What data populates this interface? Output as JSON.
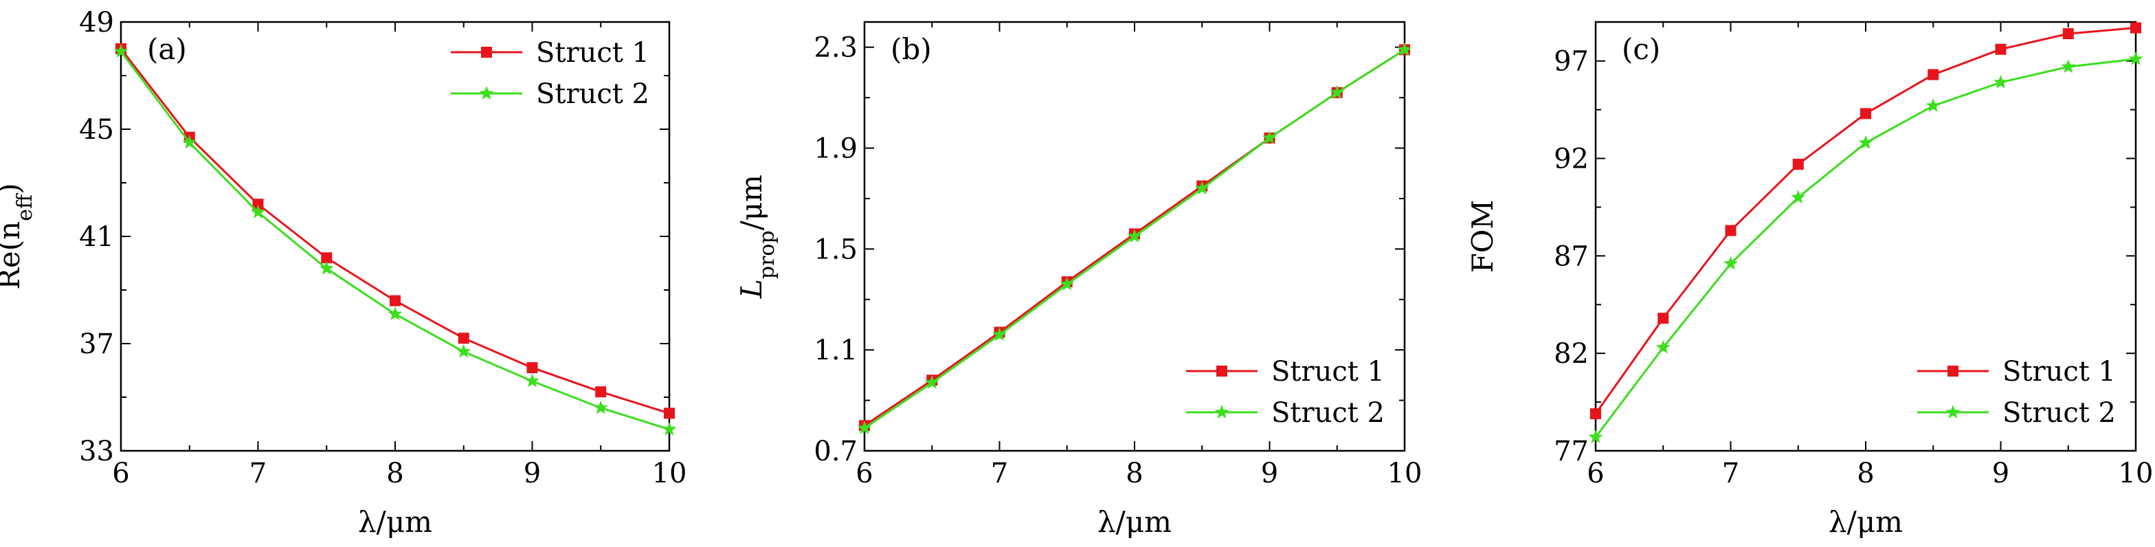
{
  "chart_data": [
    {
      "type": "line",
      "panel_label": "(a)",
      "x": [
        6,
        6.5,
        7,
        7.5,
        8,
        8.5,
        9,
        9.5,
        10
      ],
      "xlim": [
        6,
        10
      ],
      "xticks": [
        "6",
        "7",
        "8",
        "9",
        "10"
      ],
      "xlabel": "λ/μm",
      "ylabel": "Re(n",
      "ylabel_sub": "eff",
      "ylabel_close": ")",
      "ylim": [
        33,
        49
      ],
      "yticks": [
        "33",
        "37",
        "41",
        "45",
        "49"
      ],
      "legend_position": "top-right",
      "series": [
        {
          "name": "Struct 1",
          "color": "#e8141c",
          "marker": "square",
          "values": [
            48.0,
            44.7,
            42.2,
            40.2,
            38.6,
            37.2,
            36.1,
            35.2,
            34.4
          ]
        },
        {
          "name": "Struct 2",
          "color": "#3cde1e",
          "marker": "star",
          "values": [
            47.9,
            44.5,
            41.9,
            39.8,
            38.1,
            36.7,
            35.6,
            34.6,
            33.8
          ]
        }
      ]
    },
    {
      "type": "line",
      "panel_label": "(b)",
      "x": [
        6,
        6.5,
        7,
        7.5,
        8,
        8.5,
        9,
        9.5,
        10
      ],
      "xlim": [
        6,
        10
      ],
      "xticks": [
        "6",
        "7",
        "8",
        "9",
        "10"
      ],
      "xlabel": "λ/μm",
      "ylabel": "L",
      "ylabel_sub": "prop",
      "ylabel_close": "/μm",
      "ylim": [
        0.7,
        2.4
      ],
      "yticks": [
        "0.7",
        "1.1",
        "1.5",
        "1.9",
        "2.3"
      ],
      "ytick_values": [
        0.7,
        1.1,
        1.5,
        1.9,
        2.3
      ],
      "legend_position": "bottom-right",
      "series": [
        {
          "name": "Struct 1",
          "color": "#e8141c",
          "marker": "square",
          "values": [
            0.8,
            0.98,
            1.17,
            1.37,
            1.56,
            1.75,
            1.94,
            2.12,
            2.29
          ]
        },
        {
          "name": "Struct 2",
          "color": "#3cde1e",
          "marker": "star",
          "values": [
            0.79,
            0.97,
            1.16,
            1.36,
            1.55,
            1.74,
            1.94,
            2.12,
            2.29
          ]
        }
      ]
    },
    {
      "type": "line",
      "panel_label": "(c)",
      "x": [
        6,
        6.5,
        7,
        7.5,
        8,
        8.5,
        9,
        9.5,
        10
      ],
      "xlim": [
        6,
        10
      ],
      "xticks": [
        "6",
        "7",
        "8",
        "9",
        "10"
      ],
      "xlabel": "λ/μm",
      "ylabel": "FOM",
      "ylabel_sub": "",
      "ylabel_close": "",
      "ylim": [
        77,
        99
      ],
      "yticks": [
        "77",
        "82",
        "87",
        "92",
        "97"
      ],
      "ytick_values": [
        77,
        82,
        87,
        92,
        97
      ],
      "legend_position": "bottom-right",
      "series": [
        {
          "name": "Struct 1",
          "color": "#e8141c",
          "marker": "square",
          "values": [
            78.9,
            83.8,
            88.3,
            91.7,
            94.3,
            96.3,
            97.6,
            98.4,
            98.7
          ]
        },
        {
          "name": "Struct 2",
          "color": "#3cde1e",
          "marker": "star",
          "values": [
            77.7,
            82.3,
            86.6,
            90.0,
            92.8,
            94.7,
            95.9,
            96.7,
            97.1
          ]
        }
      ]
    }
  ]
}
